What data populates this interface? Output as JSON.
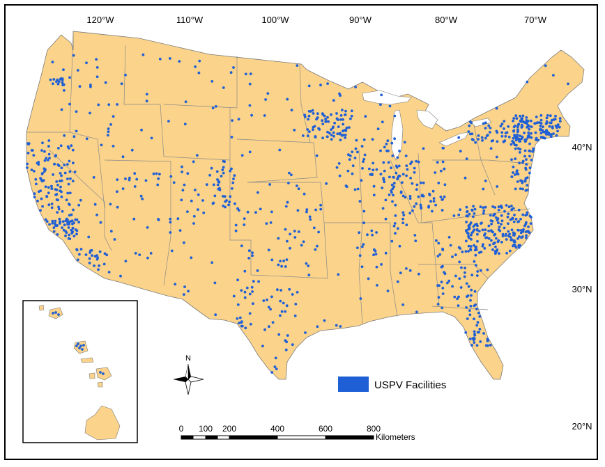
{
  "map": {
    "colors": {
      "land": "#fbd38a",
      "border": "#7a7a7a",
      "water": "#ffffff",
      "points": "#1f5fd6",
      "frame": "#000000"
    }
  },
  "graticule": {
    "lon_labels": [
      "120°W",
      "110°W",
      "100°W",
      "90°W",
      "80°W",
      "70°W"
    ],
    "lat_labels": [
      "40°N",
      "30°N",
      "20°N"
    ]
  },
  "legend": {
    "label": "USPV Facilities",
    "swatch_color": "#1f5fd6"
  },
  "north_arrow": {
    "label": "N"
  },
  "scale_bar": {
    "ticks": [
      "0",
      "100",
      "200",
      "400",
      "600",
      "800"
    ],
    "unit": "Kilometers"
  }
}
